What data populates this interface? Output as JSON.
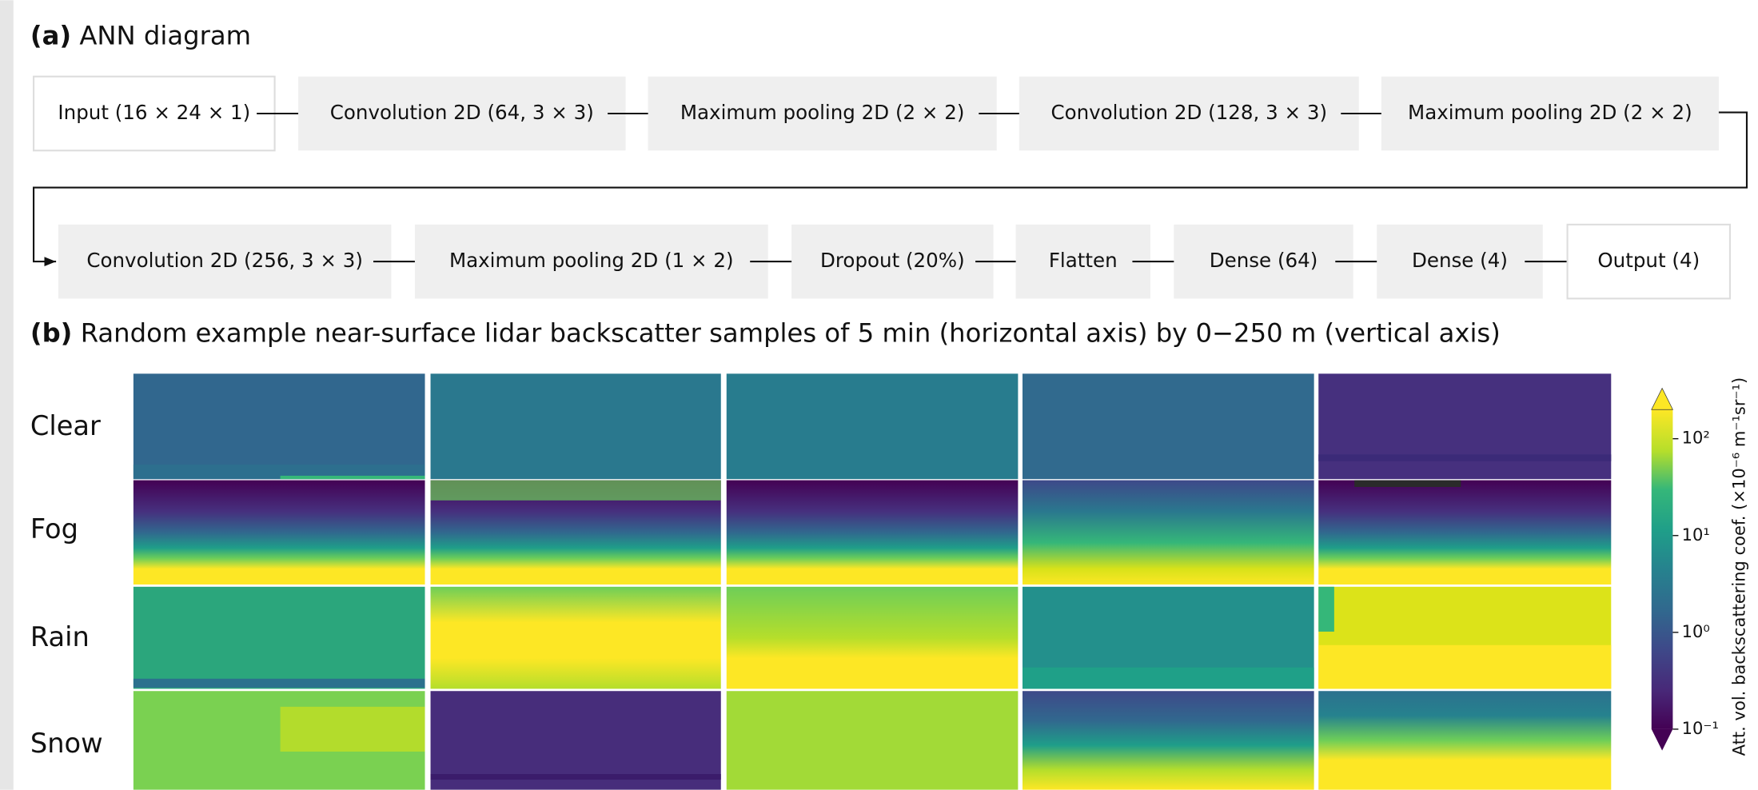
{
  "panel_a": {
    "label": "(a)",
    "title": "ANN diagram",
    "nodes": [
      "Input (16 × 24 × 1)",
      "Convolution 2D (64, 3 × 3)",
      "Maximum pooling 2D (2 × 2)",
      "Convolution 2D (128, 3 × 3)",
      "Maximum pooling 2D (2 × 2)",
      "Convolution 2D (256, 3 × 3)",
      "Maximum pooling 2D (1 × 2)",
      "Dropout (20%)",
      "Flatten",
      "Dense (64)",
      "Dense (4)",
      "Output (4)"
    ]
  },
  "panel_b": {
    "label": "(b)",
    "title": "Random example near-surface lidar backscatter samples of 5 min (horizontal axis) by 0−250 m (vertical axis)",
    "rows": [
      "Clear",
      "Fog",
      "Rain",
      "Snow"
    ],
    "colorbar": {
      "label": "Att. vol. backscattering coef. (×10⁻⁶ m⁻¹sr⁻¹)",
      "scale": "log",
      "lim": [
        0.1,
        200
      ],
      "ticks": [
        {
          "value": 100,
          "label": "10²"
        },
        {
          "value": 10,
          "label": "10¹"
        },
        {
          "value": 1,
          "label": "10⁰"
        },
        {
          "value": 0.1,
          "label": "10⁻¹"
        }
      ]
    }
  }
}
